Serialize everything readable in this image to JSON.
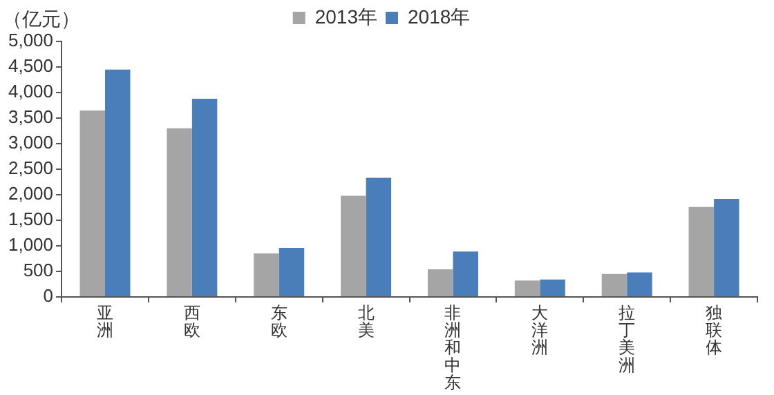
{
  "chart_data": {
    "type": "bar",
    "ylabel": "（亿元）",
    "categories": [
      "亚洲",
      "西欧",
      "东欧",
      "北美",
      "非洲和中东",
      "大洋洲",
      "拉丁美洲",
      "独联体"
    ],
    "series": [
      {
        "name": "2013年",
        "color": "#a5a5a5",
        "values": [
          3650,
          3300,
          850,
          1980,
          540,
          320,
          450,
          1760
        ]
      },
      {
        "name": "2018年",
        "color": "#4a7ebb",
        "values": [
          4450,
          3880,
          960,
          2330,
          890,
          340,
          480,
          1920
        ]
      }
    ],
    "ylim": [
      0,
      5000
    ],
    "yticks": [
      {
        "value": 0,
        "label": "0"
      },
      {
        "value": 500,
        "label": "500"
      },
      {
        "value": 1000,
        "label": "1,000"
      },
      {
        "value": 1500,
        "label": "1,500"
      },
      {
        "value": 2000,
        "label": "2,000"
      },
      {
        "value": 2500,
        "label": "2,500"
      },
      {
        "value": 3000,
        "label": "3,000"
      },
      {
        "value": 3500,
        "label": "3,500"
      },
      {
        "value": 4000,
        "label": "4,000"
      },
      {
        "value": 4500,
        "label": "4,500"
      },
      {
        "value": 5000,
        "label": "5,000"
      }
    ],
    "grid": false,
    "legend": "top"
  }
}
